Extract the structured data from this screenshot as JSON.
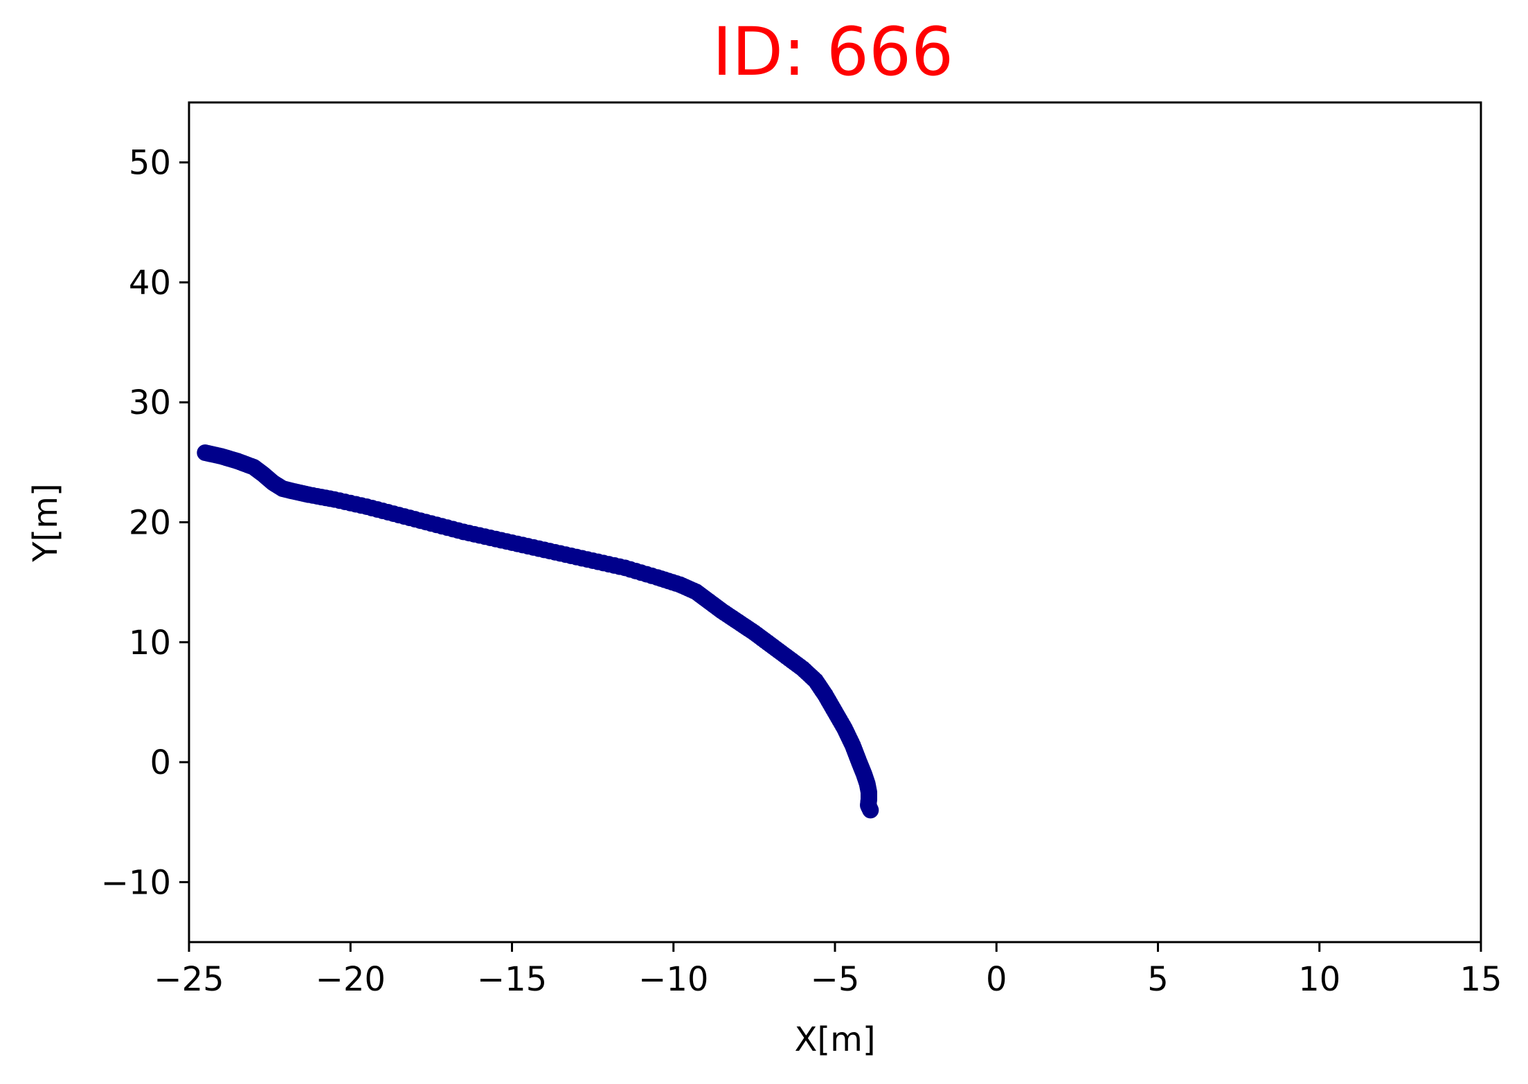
{
  "chart_data": {
    "type": "scatter",
    "title": "ID: 666",
    "title_color": "#ff0000",
    "xlabel": "X[m]",
    "ylabel": "Y[m]",
    "xlim": [
      -25,
      15
    ],
    "ylim": [
      -15,
      55
    ],
    "grid": false,
    "x_ticks": [
      -25,
      -20,
      -15,
      -10,
      -5,
      0,
      5,
      10,
      15
    ],
    "x_tick_labels": [
      "−25",
      "−20",
      "−15",
      "−10",
      "−5",
      "0",
      "5",
      "10",
      "15"
    ],
    "y_ticks": [
      -10,
      0,
      10,
      20,
      30,
      40,
      50
    ],
    "y_tick_labels": [
      "−10",
      "0",
      "10",
      "20",
      "30",
      "40",
      "50"
    ],
    "series": [
      {
        "color": "#00008b",
        "x": [
          -24.5,
          -24.0,
          -23.5,
          -23.0,
          -22.7,
          -22.4,
          -22.1,
          -21.8,
          -21.3,
          -20.5,
          -19.5,
          -18.5,
          -17.5,
          -16.5,
          -15.5,
          -14.5,
          -13.5,
          -12.5,
          -11.5,
          -10.5,
          -9.8,
          -9.3,
          -8.9,
          -8.5,
          -8.0,
          -7.5,
          -7.0,
          -6.5,
          -6.0,
          -5.6,
          -5.3,
          -5.0,
          -4.7,
          -4.45,
          -4.25,
          -4.1,
          -4.0,
          -3.95,
          -3.95,
          -3.97,
          -3.9
        ],
        "y": [
          25.8,
          25.5,
          25.1,
          24.6,
          24.0,
          23.3,
          22.8,
          22.6,
          22.3,
          21.9,
          21.3,
          20.6,
          19.9,
          19.2,
          18.6,
          18.0,
          17.4,
          16.8,
          16.2,
          15.4,
          14.8,
          14.2,
          13.4,
          12.6,
          11.7,
          10.8,
          9.8,
          8.8,
          7.8,
          6.8,
          5.6,
          4.2,
          2.8,
          1.4,
          0.0,
          -1.0,
          -1.8,
          -2.5,
          -3.1,
          -3.6,
          -4.0
        ]
      }
    ]
  }
}
